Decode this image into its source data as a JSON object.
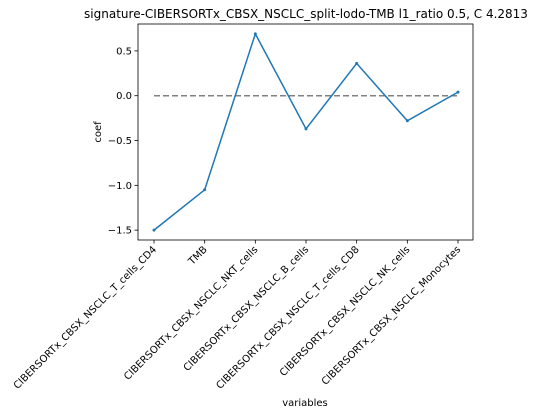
{
  "chart_data": {
    "type": "line",
    "title": "signature-CIBERSORTx_CBSX_NSCLC_split-lodo-TMB l1_ratio 0.5, C 4.2813",
    "xlabel": "variables",
    "ylabel": "coef",
    "categories": [
      "CIBERSORTx_CBSX_NSCLC_T_cells_CD4",
      "TMB",
      "CIBERSORTx_CBSX_NSCLC_NKT_cells",
      "CIBERSORTx_CBSX_NSCLC_B_cells",
      "CIBERSORTx_CBSX_NSCLC_T_cells_CD8",
      "CIBERSORTx_CBSX_NSCLC_NK_cells",
      "CIBERSORTx_CBSX_NSCLC_Monocytes"
    ],
    "series": [
      {
        "values": [
          -1.5,
          -1.05,
          0.69,
          -0.37,
          0.36,
          -0.28,
          0.04
        ]
      }
    ],
    "reference_line": {
      "y": 0,
      "style": "dashed",
      "color": "#808080"
    },
    "yticks": [
      -1.5,
      -1.0,
      -0.5,
      0.0,
      0.5
    ],
    "ytick_labels": [
      "−1.5",
      "−1.0",
      "−0.5",
      "0.0",
      "0.5"
    ],
    "ylim": [
      -1.61,
      0.8
    ],
    "grid": false,
    "colors": {
      "line": "#1f77b4",
      "axes": "#000000"
    }
  }
}
